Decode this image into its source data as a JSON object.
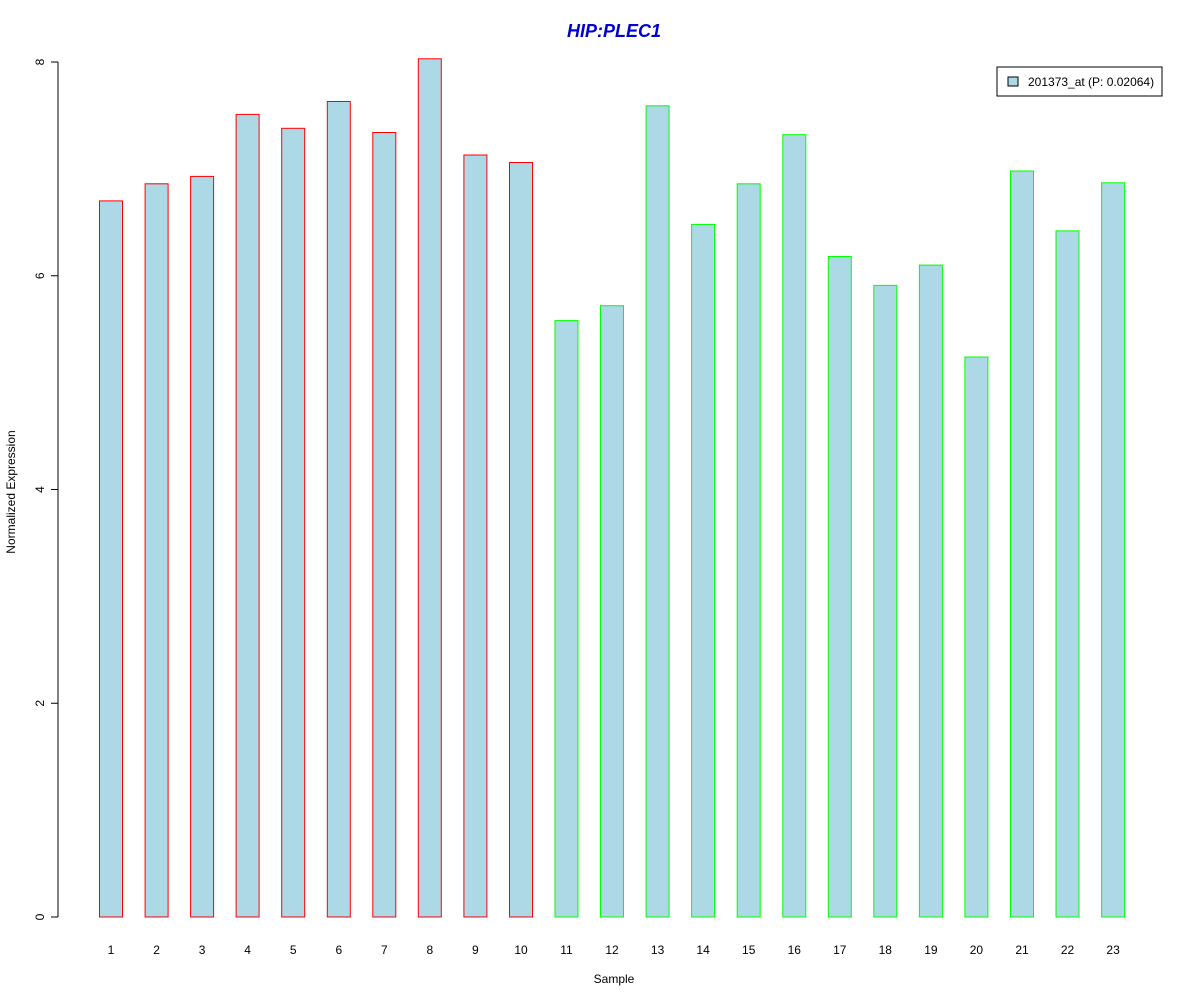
{
  "chart_data": {
    "type": "bar",
    "title": "HIP:PLEC1",
    "xlabel": "Sample",
    "ylabel": "Normalized Expression",
    "categories": [
      "1",
      "2",
      "3",
      "4",
      "5",
      "6",
      "7",
      "8",
      "9",
      "10",
      "11",
      "12",
      "13",
      "14",
      "15",
      "16",
      "17",
      "18",
      "19",
      "20",
      "21",
      "22",
      "23"
    ],
    "series": [
      {
        "name": "201373_at (P: 0.02064)",
        "values": [
          6.7,
          6.86,
          6.93,
          7.51,
          7.38,
          7.63,
          7.34,
          8.03,
          7.13,
          7.06,
          5.58,
          5.72,
          7.59,
          6.48,
          6.86,
          7.32,
          6.18,
          5.91,
          6.1,
          5.24,
          6.98,
          6.42,
          6.87
        ]
      }
    ],
    "group_borders": [
      "red",
      "red",
      "red",
      "red",
      "red",
      "red",
      "red",
      "red",
      "red",
      "red",
      "green",
      "green",
      "green",
      "green",
      "green",
      "green",
      "green",
      "green",
      "green",
      "green",
      "green",
      "green",
      "green"
    ],
    "ylim": [
      0,
      8
    ],
    "yticks": [
      "0",
      "2",
      "4",
      "6",
      "8"
    ],
    "grid": false,
    "legend_position": "top-right"
  },
  "colors": {
    "title": "#0000cc",
    "bar_fill": "#add8e6",
    "red": "#ff0000",
    "green": "#00ff00",
    "axis": "#000000"
  }
}
